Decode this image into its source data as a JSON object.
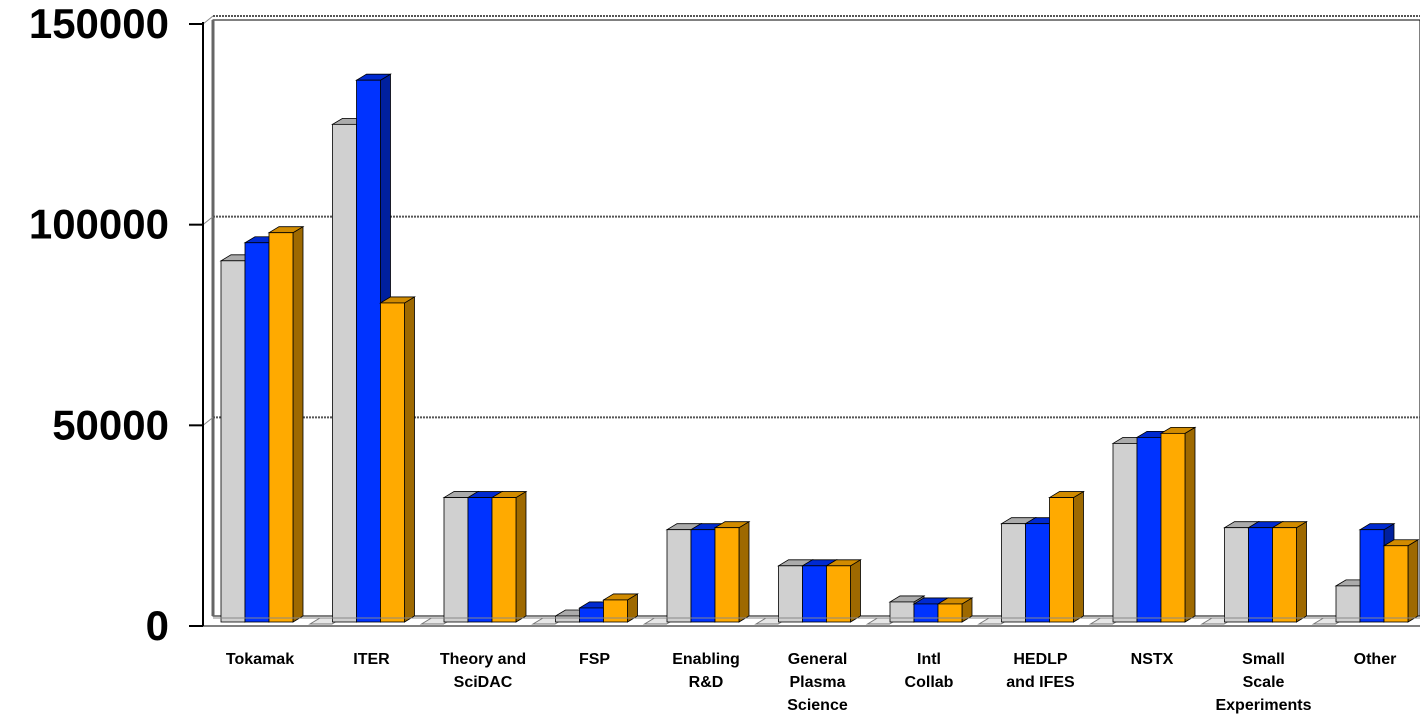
{
  "chart_data": {
    "type": "bar",
    "title": "",
    "xlabel": "",
    "ylabel": "",
    "ylim": [
      0,
      150000
    ],
    "yticks": [
      "0",
      "50000",
      "100000",
      "150000"
    ],
    "grid": true,
    "legend": "none",
    "categories": [
      [
        "Tokamak"
      ],
      [
        "ITER"
      ],
      [
        "Theory and",
        "SciDAC"
      ],
      [
        "FSP"
      ],
      [
        "Enabling",
        "R&D"
      ],
      [
        "General",
        "Plasma",
        "Science"
      ],
      [
        "Intl",
        "Collab"
      ],
      [
        "HEDLP",
        "and IFES"
      ],
      [
        "NSTX"
      ],
      [
        "Small",
        "Scale",
        "Experiments"
      ],
      [
        "Other"
      ]
    ],
    "series": [
      {
        "color": "#d0d0d0",
        "values": [
          90000,
          124000,
          31000,
          1500,
          23000,
          14000,
          5000,
          24500,
          44500,
          23500,
          9000
        ]
      },
      {
        "color": "#0033ff",
        "values": [
          94500,
          135000,
          31000,
          3500,
          23000,
          14000,
          4500,
          24500,
          46000,
          23500,
          23000
        ]
      },
      {
        "color": "#ffaa00",
        "values": [
          97000,
          79500,
          31000,
          5500,
          23500,
          14000,
          4500,
          31000,
          47000,
          23500,
          19000
        ]
      }
    ]
  }
}
